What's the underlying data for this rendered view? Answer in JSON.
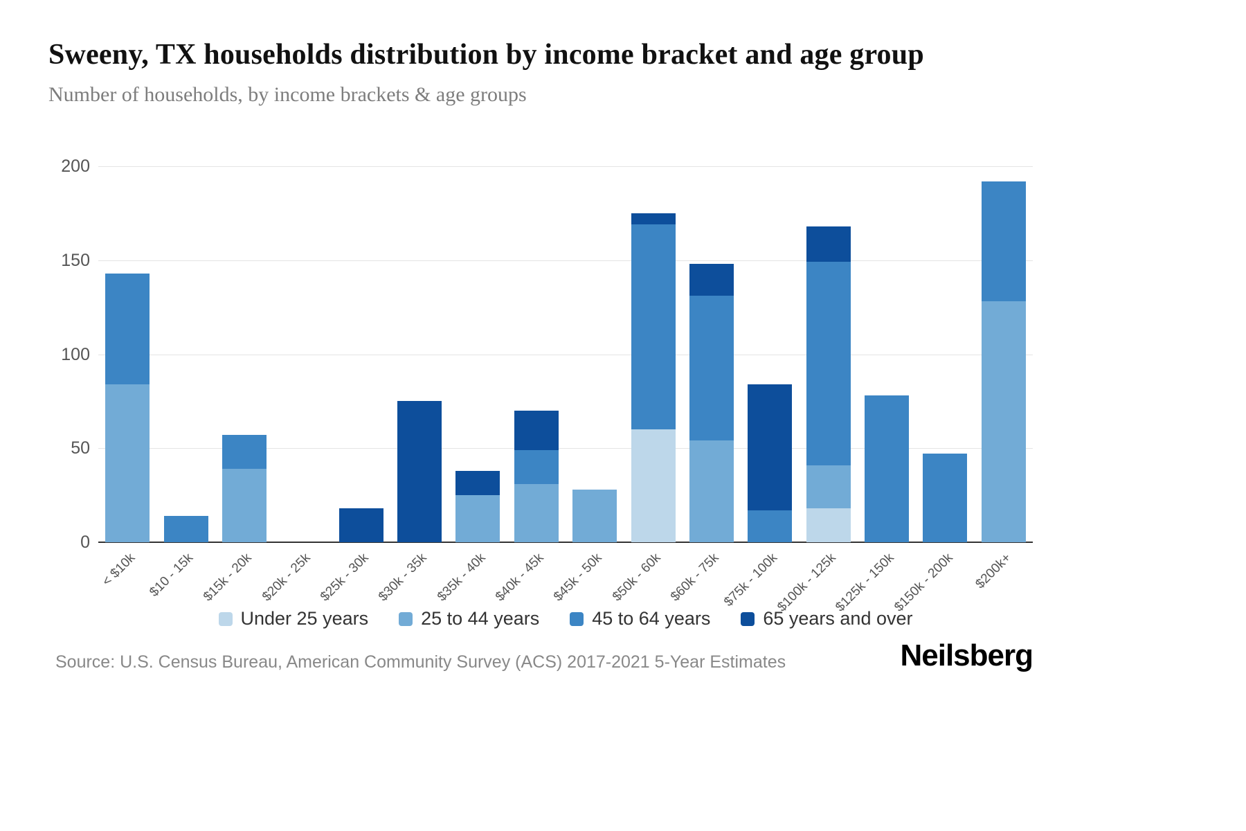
{
  "header": {
    "title": "Sweeny, TX households distribution by income bracket and age group",
    "subtitle": "Number of households, by income brackets & age groups"
  },
  "footer": {
    "source": "Source: U.S. Census Bureau, American Community Survey (ACS) 2017-2021 5-Year Estimates",
    "brand": "Neilsberg"
  },
  "chart_data": {
    "type": "bar",
    "stacked": true,
    "title": "Sweeny, TX households distribution by income bracket and age group",
    "xlabel": "",
    "ylabel": "Number of households",
    "ylim": [
      0,
      200
    ],
    "yticks": [
      0,
      50,
      100,
      150,
      200
    ],
    "grid": true,
    "legend_position": "bottom",
    "categories": [
      "< $10k",
      "$10 - 15k",
      "$15k - 20k",
      "$20k - 25k",
      "$25k - 30k",
      "$30k - 35k",
      "$35k - 40k",
      "$40k - 45k",
      "$45k - 50k",
      "$50k - 60k",
      "$60k - 75k",
      "$75k - 100k",
      "$100k - 125k",
      "$125k - 150k",
      "$150k - 200k",
      "$200k+"
    ],
    "series": [
      {
        "name": "Under 25 years",
        "color": "#bdd7ea",
        "values": [
          0,
          0,
          0,
          0,
          0,
          0,
          0,
          0,
          0,
          60,
          0,
          0,
          18,
          0,
          0,
          0
        ]
      },
      {
        "name": "25 to 44 years",
        "color": "#72abd6",
        "values": [
          84,
          0,
          39,
          0,
          0,
          0,
          25,
          31,
          28,
          0,
          54,
          0,
          23,
          0,
          0,
          128
        ]
      },
      {
        "name": "45 to 64 years",
        "color": "#3c85c4",
        "values": [
          59,
          14,
          18,
          0,
          0,
          0,
          0,
          18,
          0,
          109,
          77,
          17,
          108,
          78,
          47,
          64
        ]
      },
      {
        "name": "65 years and over",
        "color": "#0d4e9b",
        "values": [
          0,
          0,
          0,
          0,
          18,
          75,
          13,
          21,
          0,
          6,
          17,
          67,
          19,
          0,
          0,
          0
        ]
      }
    ]
  }
}
